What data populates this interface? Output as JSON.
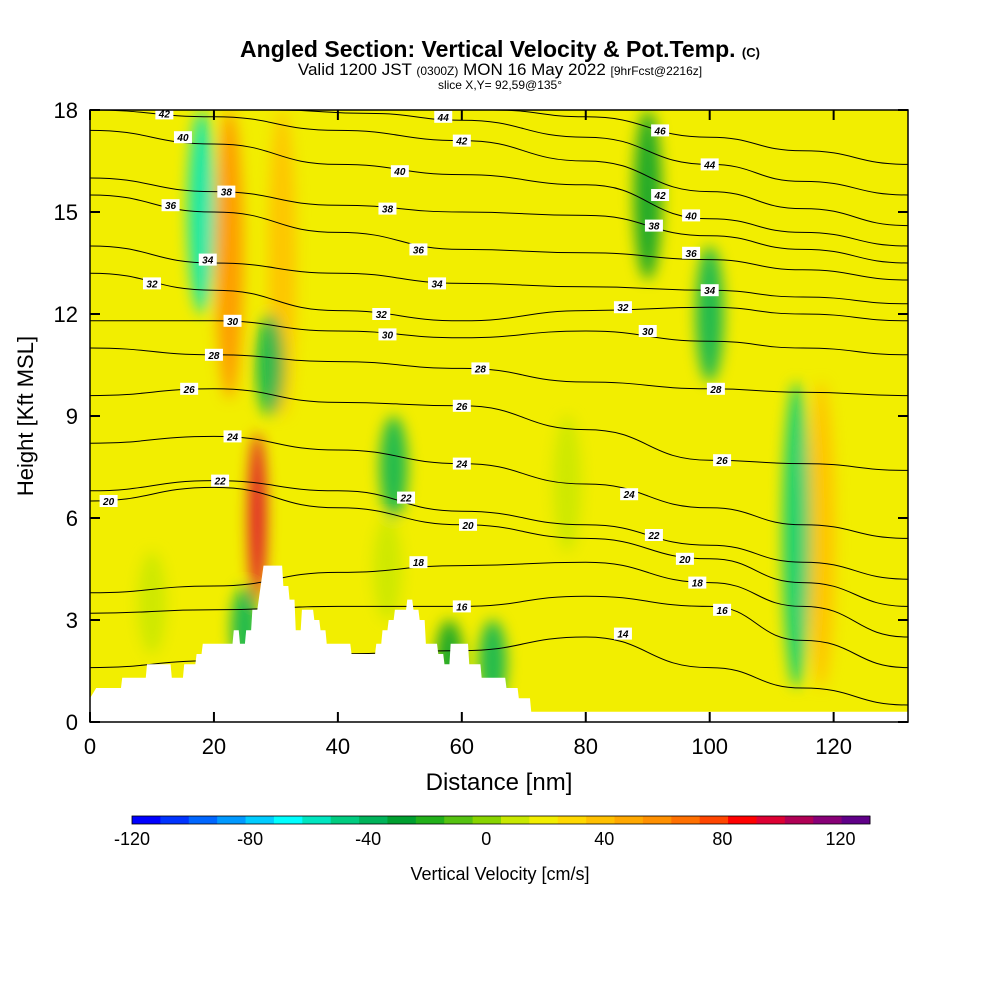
{
  "header": {
    "title": "Angled Section: Vertical Velocity & Pot.Temp.",
    "title_suffix": "(C)",
    "subtitle_a": "Valid 1200 JST",
    "subtitle_b": "(0300Z)",
    "subtitle_c": "MON 16 May 2022",
    "subtitle_d": "[9hrFcst@2216z]",
    "slice": "slice X,Y= 92,59@135°"
  },
  "colors": {
    "background_fill": "#f2ee00",
    "terrain": "#ffffff",
    "contour": "#000000"
  },
  "chart_data": {
    "type": "heatmap",
    "xlabel": "Distance [nm]",
    "ylabel": "Height [Kft MSL]",
    "xlim": [
      0,
      132
    ],
    "ylim": [
      0,
      18
    ],
    "x_ticks": [
      0,
      20,
      40,
      60,
      80,
      100,
      120
    ],
    "y_ticks": [
      0,
      3,
      6,
      9,
      12,
      15,
      18
    ],
    "colorbar": {
      "label": "Vertical Velocity [cm/s]",
      "range": [
        -120,
        130
      ],
      "step": 10,
      "tick_values": [
        -120,
        -80,
        -40,
        0,
        40,
        80,
        120
      ],
      "colors": [
        "#0000ff",
        "#0033ff",
        "#0066ff",
        "#0099ff",
        "#00ccff",
        "#00ffff",
        "#00e6c0",
        "#00cc80",
        "#00b35a",
        "#009f30",
        "#22b01a",
        "#55c211",
        "#88d400",
        "#c8e800",
        "#f2ee00",
        "#ffd800",
        "#ffc000",
        "#ffa800",
        "#ff9000",
        "#ff7000",
        "#ff4500",
        "#ff0000",
        "#dd0033",
        "#b00055",
        "#880077",
        "#600088"
      ]
    },
    "velocity_features": [
      {
        "x": 27,
        "ymin": 3.5,
        "ymax": 8.5,
        "value": 100
      },
      {
        "x": 22.5,
        "ymin": 9.5,
        "ymax": 18,
        "value": 60
      },
      {
        "x": 31,
        "ymin": 9,
        "ymax": 18,
        "value": 40
      },
      {
        "x": 118,
        "ymin": 1,
        "ymax": 10,
        "value": 45
      },
      {
        "x": 10,
        "ymin": 2,
        "ymax": 5,
        "value": 15
      },
      {
        "x": 48,
        "ymin": 3,
        "ymax": 6,
        "value": 15
      },
      {
        "x": 77,
        "ymin": 5,
        "ymax": 9,
        "value": 10
      },
      {
        "x": 18,
        "ymin": 12,
        "ymax": 18,
        "value": -60
      },
      {
        "x": 25,
        "ymin": 1.5,
        "ymax": 4,
        "value": -40
      },
      {
        "x": 29,
        "ymin": 9,
        "ymax": 12,
        "value": -40
      },
      {
        "x": 49,
        "ymin": 6,
        "ymax": 9,
        "value": -40
      },
      {
        "x": 114,
        "ymin": 1,
        "ymax": 10,
        "value": -50
      },
      {
        "x": 100,
        "ymin": 10,
        "ymax": 14,
        "value": -35
      },
      {
        "x": 65,
        "ymin": 0.5,
        "ymax": 3,
        "value": -35
      },
      {
        "x": 90,
        "ymin": 13,
        "ymax": 18,
        "value": -25
      },
      {
        "x": 58,
        "ymin": 0.5,
        "ymax": 3,
        "value": -25
      }
    ],
    "terrain_height": [
      [
        0,
        0.7
      ],
      [
        1,
        1
      ],
      [
        5,
        1
      ],
      [
        5.2,
        1.3
      ],
      [
        9,
        1.3
      ],
      [
        9.2,
        1.7
      ],
      [
        13,
        1.7
      ],
      [
        13.2,
        1.3
      ],
      [
        15,
        1.3
      ],
      [
        15.2,
        1.7
      ],
      [
        17,
        1.7
      ],
      [
        17.2,
        2
      ],
      [
        18,
        2
      ],
      [
        18.2,
        2.3
      ],
      [
        23,
        2.3
      ],
      [
        23.2,
        2.7
      ],
      [
        24,
        2.7
      ],
      [
        24.2,
        2.3
      ],
      [
        25,
        2.3
      ],
      [
        25.2,
        2.7
      ],
      [
        26,
        2.7
      ],
      [
        26.2,
        3.3
      ],
      [
        27,
        3.3
      ],
      [
        28,
        4.6
      ],
      [
        31,
        4.6
      ],
      [
        31.2,
        4
      ],
      [
        32,
        4
      ],
      [
        32.2,
        3.6
      ],
      [
        33,
        3.6
      ],
      [
        33.2,
        2.7
      ],
      [
        34,
        2.7
      ],
      [
        34.2,
        3.3
      ],
      [
        36,
        3.3
      ],
      [
        36.2,
        3
      ],
      [
        37,
        3
      ],
      [
        37.2,
        2.7
      ],
      [
        38,
        2.7
      ],
      [
        38.2,
        2.3
      ],
      [
        42,
        2.3
      ],
      [
        42.2,
        2
      ],
      [
        46,
        2
      ],
      [
        46.2,
        2.3
      ],
      [
        47,
        2.3
      ],
      [
        47.2,
        2.7
      ],
      [
        48,
        2.7
      ],
      [
        48.2,
        3
      ],
      [
        49,
        3
      ],
      [
        49.2,
        3.3
      ],
      [
        51,
        3.3
      ],
      [
        51.2,
        3.6
      ],
      [
        52,
        3.6
      ],
      [
        52.2,
        3.3
      ],
      [
        53,
        3.3
      ],
      [
        53.2,
        3
      ],
      [
        54,
        3
      ],
      [
        54.2,
        2.3
      ],
      [
        56,
        2.3
      ],
      [
        56.2,
        2
      ],
      [
        57,
        2
      ],
      [
        57.2,
        1.7
      ],
      [
        58,
        1.7
      ],
      [
        58.2,
        2.3
      ],
      [
        61,
        2.3
      ],
      [
        61.2,
        1.7
      ],
      [
        63,
        1.7
      ],
      [
        63.2,
        1.3
      ],
      [
        67,
        1.3
      ],
      [
        67.2,
        1
      ],
      [
        69,
        1
      ],
      [
        69.2,
        0.7
      ],
      [
        71,
        0.7
      ],
      [
        71.2,
        0.3
      ],
      [
        132,
        0.3
      ]
    ],
    "contours": [
      {
        "level": 14,
        "labels": [
          [
            86,
            2.6
          ]
        ],
        "points": [
          [
            0,
            1.6
          ],
          [
            20,
            1.8
          ],
          [
            40,
            2.0
          ],
          [
            60,
            2.1
          ],
          [
            80,
            2.5
          ],
          [
            100,
            1.6
          ],
          [
            115,
            1.0
          ],
          [
            132,
            0.5
          ]
        ]
      },
      {
        "level": 16,
        "labels": [
          [
            60,
            3.4
          ],
          [
            102,
            3.3
          ]
        ],
        "points": [
          [
            0,
            3.2
          ],
          [
            20,
            3.3
          ],
          [
            40,
            3.4
          ],
          [
            60,
            3.4
          ],
          [
            80,
            3.7
          ],
          [
            100,
            3.4
          ],
          [
            115,
            2.4
          ],
          [
            132,
            1.6
          ]
        ]
      },
      {
        "level": 18,
        "labels": [
          [
            53,
            4.7
          ],
          [
            98,
            4.1
          ]
        ],
        "points": [
          [
            0,
            3.8
          ],
          [
            20,
            4.0
          ],
          [
            40,
            4.4
          ],
          [
            60,
            4.6
          ],
          [
            80,
            4.7
          ],
          [
            100,
            4.1
          ],
          [
            115,
            3.4
          ],
          [
            132,
            2.5
          ]
        ]
      },
      {
        "level": 20,
        "labels": [
          [
            3,
            6.5
          ],
          [
            61,
            5.8
          ],
          [
            96,
            4.8
          ]
        ],
        "points": [
          [
            0,
            6.5
          ],
          [
            20,
            6.9
          ],
          [
            40,
            6.3
          ],
          [
            60,
            5.8
          ],
          [
            80,
            5.4
          ],
          [
            100,
            4.8
          ],
          [
            115,
            4.1
          ],
          [
            132,
            3.4
          ]
        ]
      },
      {
        "level": 22,
        "labels": [
          [
            21,
            7.1
          ],
          [
            51,
            6.6
          ],
          [
            91,
            5.5
          ]
        ],
        "points": [
          [
            0,
            6.8
          ],
          [
            20,
            7.1
          ],
          [
            40,
            6.8
          ],
          [
            60,
            6.2
          ],
          [
            80,
            5.8
          ],
          [
            100,
            5.2
          ],
          [
            115,
            4.7
          ],
          [
            132,
            4.2
          ]
        ]
      },
      {
        "level": 24,
        "labels": [
          [
            23,
            8.4
          ],
          [
            60,
            7.6
          ],
          [
            87,
            6.7
          ]
        ],
        "points": [
          [
            0,
            8.2
          ],
          [
            20,
            8.4
          ],
          [
            40,
            8.0
          ],
          [
            60,
            7.6
          ],
          [
            80,
            7.0
          ],
          [
            100,
            6.3
          ],
          [
            115,
            5.8
          ],
          [
            132,
            5.4
          ]
        ]
      },
      {
        "level": 26,
        "labels": [
          [
            16,
            9.8
          ],
          [
            60,
            9.3
          ],
          [
            102,
            7.7
          ]
        ],
        "points": [
          [
            0,
            9.6
          ],
          [
            20,
            9.8
          ],
          [
            40,
            9.4
          ],
          [
            60,
            9.3
          ],
          [
            80,
            8.6
          ],
          [
            100,
            7.7
          ],
          [
            115,
            7.6
          ],
          [
            132,
            7.4
          ]
        ]
      },
      {
        "level": 28,
        "labels": [
          [
            20,
            10.8
          ],
          [
            63,
            10.4
          ],
          [
            101,
            9.8
          ]
        ],
        "points": [
          [
            0,
            11.0
          ],
          [
            20,
            10.8
          ],
          [
            40,
            10.6
          ],
          [
            60,
            10.4
          ],
          [
            80,
            10.0
          ],
          [
            100,
            9.8
          ],
          [
            115,
            9.7
          ],
          [
            132,
            9.6
          ]
        ]
      },
      {
        "level": 30,
        "labels": [
          [
            23,
            11.8
          ],
          [
            48,
            11.4
          ],
          [
            90,
            11.5
          ]
        ],
        "points": [
          [
            0,
            11.8
          ],
          [
            20,
            11.8
          ],
          [
            40,
            11.5
          ],
          [
            60,
            11.3
          ],
          [
            80,
            11.5
          ],
          [
            100,
            11.2
          ],
          [
            115,
            11.0
          ],
          [
            132,
            10.8
          ]
        ]
      },
      {
        "level": 32,
        "labels": [
          [
            10,
            12.9
          ],
          [
            47,
            12.0
          ],
          [
            86,
            12.2
          ]
        ],
        "points": [
          [
            0,
            13.2
          ],
          [
            20,
            12.7
          ],
          [
            40,
            12.1
          ],
          [
            60,
            11.8
          ],
          [
            80,
            12.1
          ],
          [
            100,
            12.2
          ],
          [
            115,
            12.0
          ],
          [
            132,
            11.8
          ]
        ]
      },
      {
        "level": 34,
        "labels": [
          [
            19,
            13.6
          ],
          [
            56,
            12.9
          ],
          [
            100,
            12.7
          ]
        ],
        "points": [
          [
            0,
            14.0
          ],
          [
            20,
            13.5
          ],
          [
            40,
            13.2
          ],
          [
            60,
            12.9
          ],
          [
            80,
            12.8
          ],
          [
            100,
            12.7
          ],
          [
            115,
            12.5
          ],
          [
            132,
            12.3
          ]
        ]
      },
      {
        "level": 36,
        "labels": [
          [
            13,
            15.2
          ],
          [
            53,
            13.9
          ],
          [
            97,
            13.8
          ]
        ],
        "points": [
          [
            0,
            15.5
          ],
          [
            20,
            15.0
          ],
          [
            40,
            14.4
          ],
          [
            60,
            13.9
          ],
          [
            80,
            13.8
          ],
          [
            100,
            13.6
          ],
          [
            115,
            13.3
          ],
          [
            132,
            13.0
          ]
        ]
      },
      {
        "level": 38,
        "labels": [
          [
            22,
            15.6
          ],
          [
            48,
            15.1
          ],
          [
            91,
            14.6
          ]
        ],
        "points": [
          [
            0,
            16.0
          ],
          [
            20,
            15.6
          ],
          [
            40,
            15.2
          ],
          [
            60,
            15.0
          ],
          [
            80,
            14.9
          ],
          [
            100,
            14.3
          ],
          [
            115,
            13.9
          ],
          [
            132,
            13.5
          ]
        ]
      },
      {
        "level": 40,
        "labels": [
          [
            15,
            17.2
          ],
          [
            50,
            16.2
          ],
          [
            97,
            14.9
          ]
        ],
        "points": [
          [
            0,
            17.4
          ],
          [
            20,
            17.0
          ],
          [
            40,
            16.4
          ],
          [
            60,
            16.1
          ],
          [
            80,
            15.8
          ],
          [
            100,
            14.8
          ],
          [
            115,
            14.4
          ],
          [
            132,
            14.0
          ]
        ]
      },
      {
        "level": 42,
        "labels": [
          [
            12,
            17.9
          ],
          [
            60,
            17.1
          ],
          [
            92,
            15.5
          ]
        ],
        "points": [
          [
            0,
            18.0
          ],
          [
            20,
            17.8
          ],
          [
            40,
            17.4
          ],
          [
            60,
            17.1
          ],
          [
            80,
            16.5
          ],
          [
            100,
            15.6
          ],
          [
            115,
            15.1
          ],
          [
            132,
            14.6
          ]
        ]
      },
      {
        "level": 44,
        "labels": [
          [
            57,
            17.8
          ],
          [
            100,
            16.4
          ]
        ],
        "points": [
          [
            30,
            18.0
          ],
          [
            45,
            17.9
          ],
          [
            60,
            17.7
          ],
          [
            80,
            17.2
          ],
          [
            100,
            16.4
          ],
          [
            115,
            15.9
          ],
          [
            132,
            15.5
          ]
        ]
      },
      {
        "level": 46,
        "labels": [
          [
            92,
            17.4
          ]
        ],
        "points": [
          [
            65,
            18.0
          ],
          [
            80,
            17.8
          ],
          [
            100,
            17.2
          ],
          [
            115,
            16.8
          ],
          [
            132,
            16.4
          ]
        ]
      }
    ]
  }
}
